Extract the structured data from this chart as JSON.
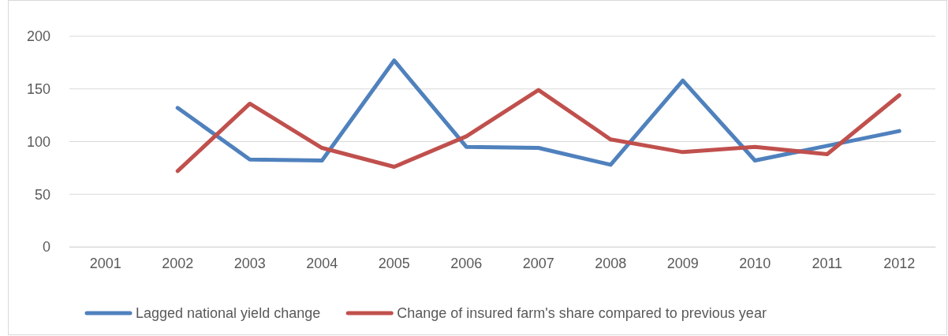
{
  "chart_data": {
    "type": "line",
    "categories": [
      "2001",
      "2002",
      "2003",
      "2004",
      "2005",
      "2006",
      "2007",
      "2008",
      "2009",
      "2010",
      "2011",
      "2012"
    ],
    "series": [
      {
        "name": "Lagged national yield change",
        "color": "#4f81bd",
        "values": [
          null,
          132,
          83,
          82,
          177,
          95,
          94,
          78,
          158,
          82,
          96,
          110
        ]
      },
      {
        "name": "Change of insured farm's share compared to previous year",
        "color": "#c0504d",
        "values": [
          null,
          72,
          136,
          94,
          76,
          105,
          149,
          102,
          90,
          95,
          88,
          144
        ]
      }
    ],
    "ylim": [
      0,
      200
    ],
    "yticks": [
      0,
      50,
      100,
      150,
      200
    ],
    "grid": "y",
    "legend": "bottom",
    "marker": "none",
    "line_style": "solid"
  }
}
